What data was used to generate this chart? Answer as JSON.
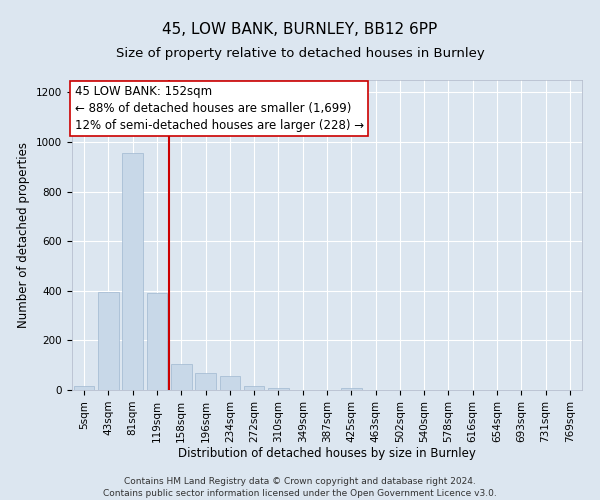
{
  "title1": "45, LOW BANK, BURNLEY, BB12 6PP",
  "title2": "Size of property relative to detached houses in Burnley",
  "xlabel": "Distribution of detached houses by size in Burnley",
  "ylabel": "Number of detached properties",
  "footnote": "Contains HM Land Registry data © Crown copyright and database right 2024.\nContains public sector information licensed under the Open Government Licence v3.0.",
  "annotation_line1": "45 LOW BANK: 152sqm",
  "annotation_line2": "← 88% of detached houses are smaller (1,699)",
  "annotation_line3": "12% of semi-detached houses are larger (228) →",
  "bar_categories": [
    "5sqm",
    "43sqm",
    "81sqm",
    "119sqm",
    "158sqm",
    "196sqm",
    "234sqm",
    "272sqm",
    "310sqm",
    "349sqm",
    "387sqm",
    "425sqm",
    "463sqm",
    "502sqm",
    "540sqm",
    "578sqm",
    "616sqm",
    "654sqm",
    "693sqm",
    "731sqm",
    "769sqm"
  ],
  "bar_values": [
    18,
    395,
    955,
    390,
    105,
    70,
    55,
    18,
    8,
    0,
    0,
    8,
    0,
    0,
    0,
    0,
    0,
    0,
    0,
    0,
    0
  ],
  "bar_color": "#c8d8e8",
  "bar_edge_color": "#a0b8d0",
  "vline_color": "#cc0000",
  "ylim": [
    0,
    1250
  ],
  "yticks": [
    0,
    200,
    400,
    600,
    800,
    1000,
    1200
  ],
  "background_color": "#dce6f0",
  "plot_bg_color": "#dce6f0",
  "grid_color": "#ffffff",
  "title1_fontsize": 11,
  "title2_fontsize": 9.5,
  "annotation_fontsize": 8.5,
  "axis_label_fontsize": 8.5,
  "tick_fontsize": 7.5,
  "footnote_fontsize": 6.5
}
